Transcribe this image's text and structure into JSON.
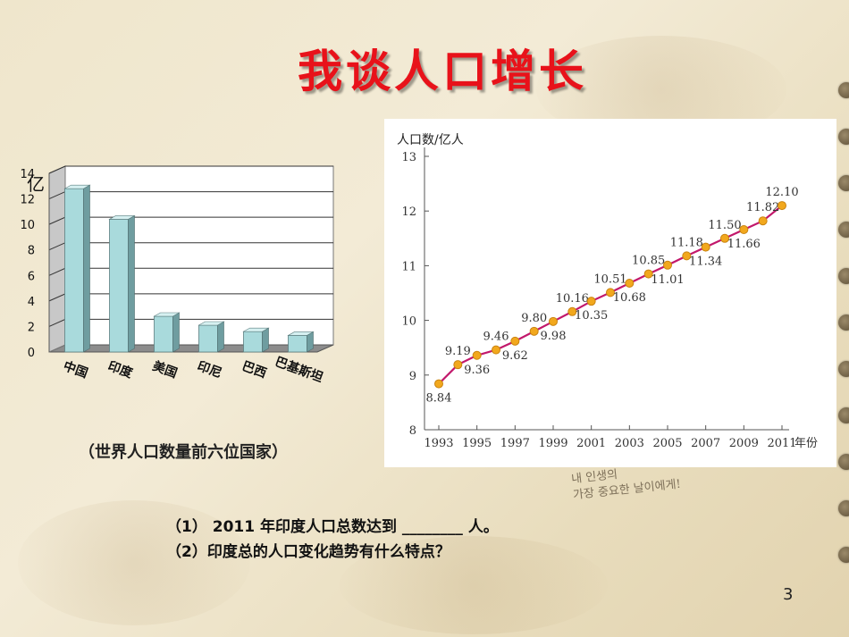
{
  "title": "我谈人口增长",
  "page_number": "3",
  "bar_caption": "（世界人口数量前六位国家）",
  "questions": [
    "（1） 2011 年印度人口总数达到 ________ 人。",
    "（2）印度总的人口变化趋势有什么特点？"
  ],
  "handwriting": [
    "내 인생의",
    "가장 중요한 날이에게!"
  ],
  "colors": {
    "title": "#e8121a",
    "bar": "#a9dadc",
    "line": "#c2186b",
    "marker": "#f2a81d"
  },
  "chart_data": [
    {
      "type": "bar",
      "categories": [
        "中国",
        "印度",
        "美国",
        "印尼",
        "巴西",
        "巴基斯坦"
      ],
      "values": [
        12.8,
        10.4,
        2.8,
        2.1,
        1.6,
        1.3
      ],
      "ylabel": "亿",
      "ylim": [
        0,
        14
      ],
      "yticks": [
        0,
        2,
        4,
        6,
        8,
        10,
        12,
        14
      ],
      "grid": true
    },
    {
      "type": "line",
      "ylabel": "人口数/亿人",
      "xlabel": "年份",
      "x": [
        1993,
        1994,
        1995,
        1996,
        1997,
        1998,
        1999,
        2000,
        2001,
        2002,
        2003,
        2004,
        2005,
        2006,
        2007,
        2008,
        2009,
        2010,
        2011
      ],
      "y": [
        8.84,
        9.19,
        9.36,
        9.46,
        9.62,
        9.8,
        9.98,
        10.16,
        10.35,
        10.51,
        10.68,
        10.85,
        11.01,
        11.18,
        11.34,
        11.5,
        11.66,
        11.82,
        12.1
      ],
      "data_labels": [
        "8.84",
        "9.19",
        "9.36",
        "9.46",
        "9.62",
        "9.80",
        "9.98",
        "10.16",
        "10.35",
        "10.51",
        "10.68",
        "10.85",
        "11.01",
        "11.18",
        "11.34",
        "11.50",
        "11.66",
        "11.82",
        "12.10"
      ],
      "xticks": [
        "1993",
        "1995",
        "1997",
        "1999",
        "2001",
        "2003",
        "2005",
        "2007",
        "2009",
        "2011"
      ],
      "yticks": [
        "8",
        "9",
        "10",
        "11",
        "12",
        "13"
      ],
      "ylim": [
        8,
        13
      ],
      "grid": false
    }
  ]
}
